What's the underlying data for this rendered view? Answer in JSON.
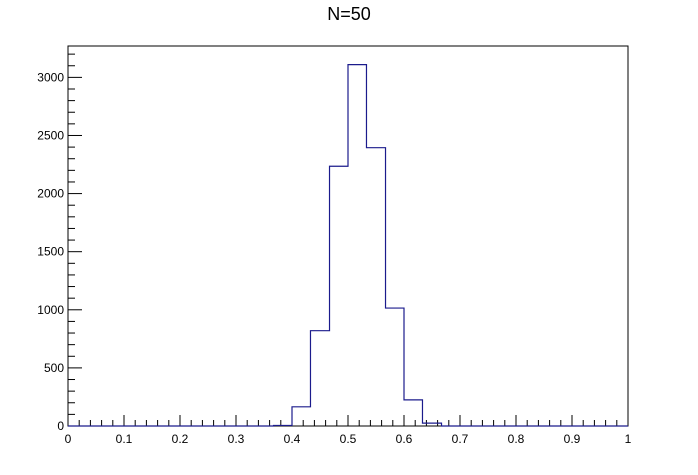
{
  "chart_data": {
    "type": "bar",
    "style": "step-histogram",
    "title": "N=50",
    "xlabel": "",
    "ylabel": "",
    "xlim": [
      0,
      1
    ],
    "ylim": [
      0,
      3270
    ],
    "line_color": "#1b1b8c",
    "grid": false,
    "x_ticks": [
      "0",
      "0.1",
      "0.2",
      "0.3",
      "0.4",
      "0.5",
      "0.6",
      "0.7",
      "0.8",
      "0.9",
      "1"
    ],
    "y_ticks": [
      "0",
      "500",
      "1000",
      "1500",
      "2000",
      "2500",
      "3000"
    ],
    "bin_width": 0.0333,
    "bin_edges": [
      0.367,
      0.4,
      0.433,
      0.467,
      0.5,
      0.533,
      0.567,
      0.6,
      0.633,
      0.667
    ],
    "values": [
      5,
      165,
      820,
      2235,
      3110,
      2395,
      1015,
      225,
      25
    ]
  }
}
